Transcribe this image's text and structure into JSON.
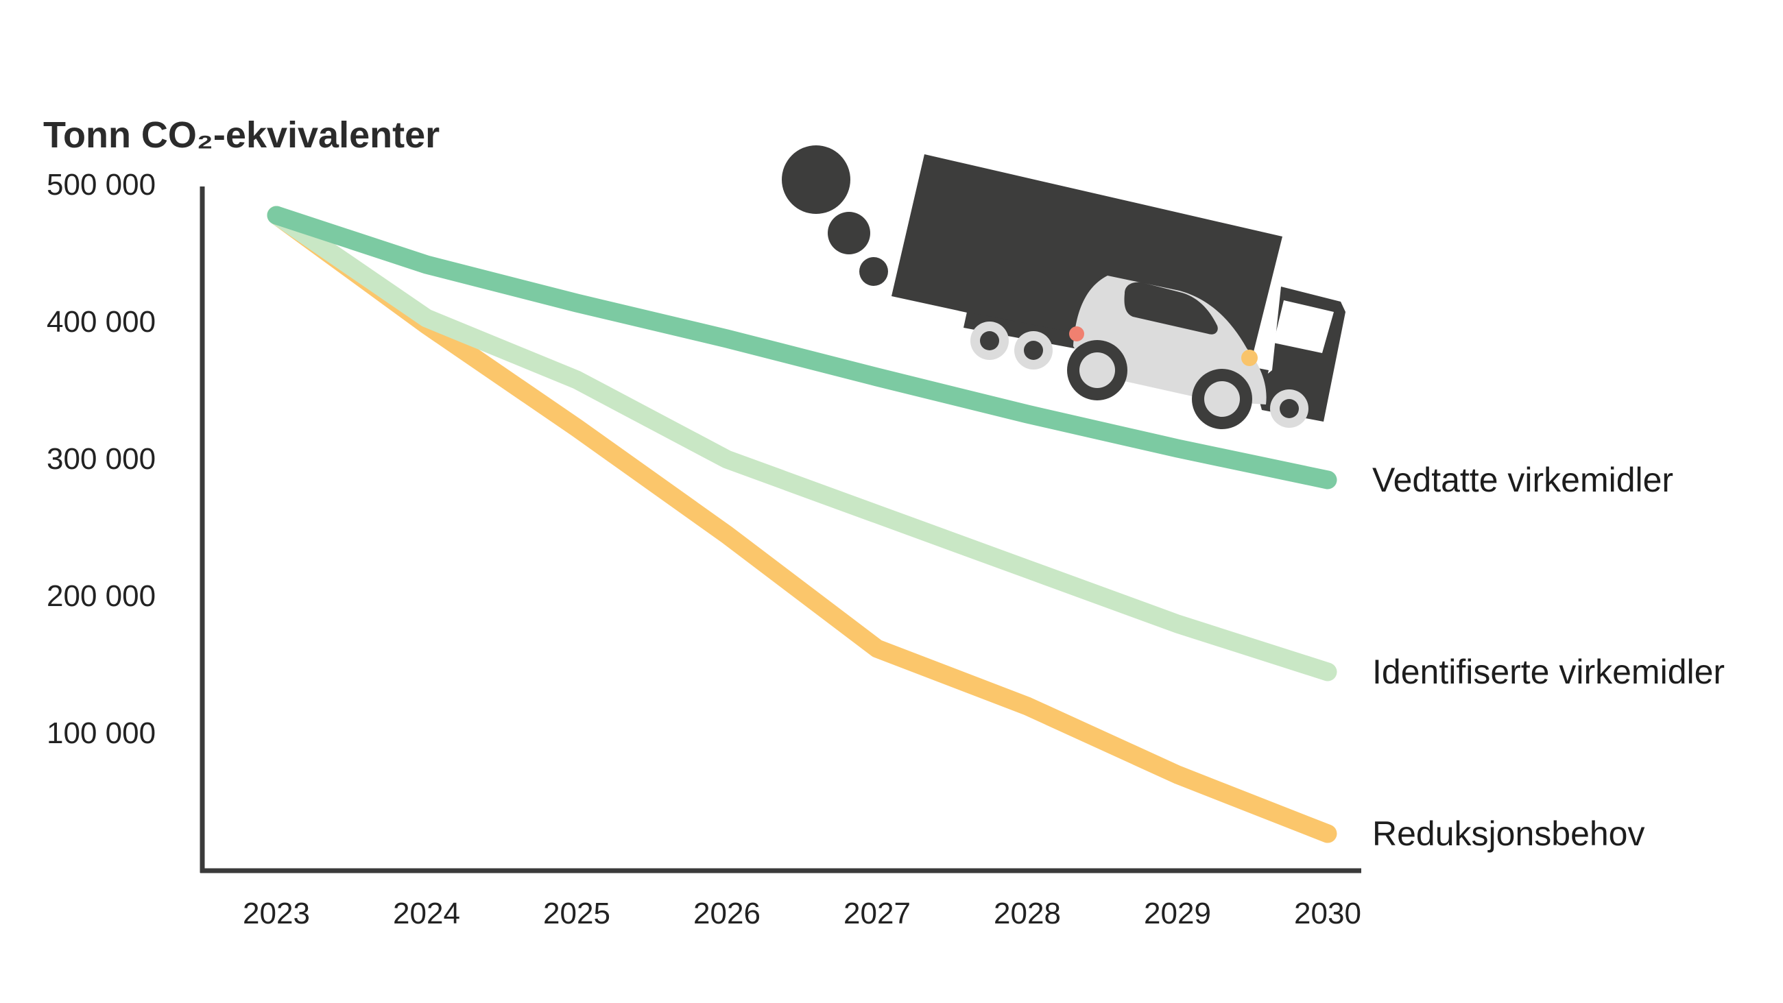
{
  "chart_data": {
    "type": "line",
    "title": "",
    "ylabel": "Tonn CO₂-ekvivalenter",
    "xlabel": "",
    "x": [
      "2023",
      "2024",
      "2025",
      "2026",
      "2027",
      "2028",
      "2029",
      "2030"
    ],
    "ylim": [
      0,
      500000
    ],
    "yticks": [
      {
        "value": 500000,
        "label": "500 000"
      },
      {
        "value": 400000,
        "label": "400 000"
      },
      {
        "value": 300000,
        "label": "300 000"
      },
      {
        "value": 200000,
        "label": "200 000"
      },
      {
        "value": 100000,
        "label": "100 000"
      }
    ],
    "grid": false,
    "legend": "labels at line ends (right)",
    "series": [
      {
        "name": "Vedtatte virkemidler",
        "color": "#7ccaa2",
        "values": [
          478000,
          442000,
          414000,
          388000,
          360000,
          333000,
          308000,
          285000
        ]
      },
      {
        "name": "Identifiserte virkemidler",
        "color": "#c9e7c5",
        "values": [
          478000,
          403000,
          358000,
          300000,
          260000,
          220000,
          180000,
          145000
        ]
      },
      {
        "name": "Reduksjonsbehov",
        "color": "#fbc66b",
        "values": [
          478000,
          398000,
          323000,
          245000,
          162000,
          120000,
          70000,
          27000
        ]
      }
    ]
  },
  "illustration": {
    "icon": "truck-and-car-icon",
    "colors": {
      "truck": "#3d3d3c",
      "car": "#dcdcdc",
      "taillight": "#f08070",
      "headlight": "#f9c46b"
    }
  }
}
